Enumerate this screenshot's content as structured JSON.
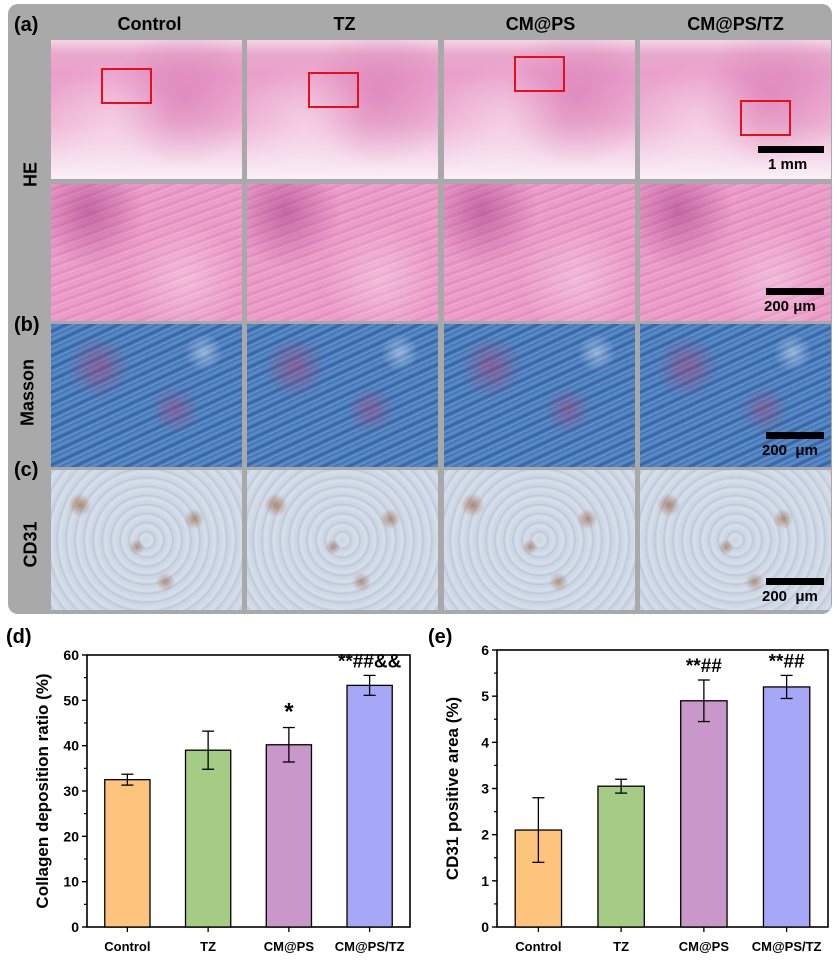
{
  "figure": {
    "panel_labels": [
      "(a)",
      "(b)",
      "(c)",
      "(d)",
      "(e)"
    ],
    "columns": [
      "Control",
      "TZ",
      "CM@PS",
      "CM@PS/TZ"
    ],
    "rows": {
      "he": "HE",
      "masson": "Masson",
      "cd31": "CD31"
    },
    "scale_bars": {
      "he_low": "1 mm",
      "he_high": "200 μm",
      "masson": "200  μm",
      "cd31": "200  μm"
    }
  },
  "chart_data": [
    {
      "type": "bar",
      "panel": "(d)",
      "categories": [
        "Control",
        "TZ",
        "CM@PS",
        "CM@PS/TZ"
      ],
      "values": [
        32.5,
        39.0,
        40.2,
        53.3
      ],
      "errors": [
        1.2,
        4.2,
        3.8,
        2.2
      ],
      "significance": [
        "",
        "",
        "*",
        "**##&&"
      ],
      "colors": [
        "#fec47e",
        "#a4cc84",
        "#c997c9",
        "#a7a7f7"
      ],
      "ylabel": "Collagen deposition ratio (%)",
      "ylim": [
        0,
        60
      ],
      "yticks": [
        0,
        10,
        20,
        30,
        40,
        50,
        60
      ]
    },
    {
      "type": "bar",
      "panel": "(e)",
      "categories": [
        "Control",
        "TZ",
        "CM@PS",
        "CM@PS/TZ"
      ],
      "values": [
        2.1,
        3.05,
        4.9,
        5.2
      ],
      "errors": [
        0.7,
        0.15,
        0.45,
        0.25
      ],
      "significance": [
        "",
        "",
        "**##",
        "**##"
      ],
      "colors": [
        "#fec47e",
        "#a4cc84",
        "#c997c9",
        "#a7a7f7"
      ],
      "ylabel": "CD31 positive area (%)",
      "ylim": [
        0,
        6
      ],
      "yticks": [
        0,
        1,
        2,
        3,
        4,
        5,
        6
      ]
    }
  ]
}
